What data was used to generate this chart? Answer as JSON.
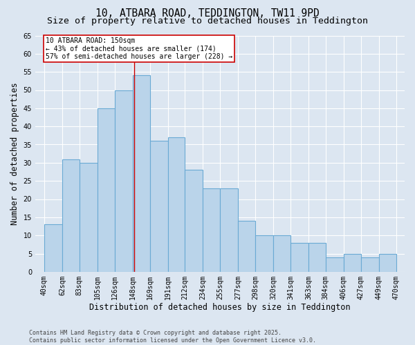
{
  "title1": "10, ATBARA ROAD, TEDDINGTON, TW11 9PD",
  "title2": "Size of property relative to detached houses in Teddington",
  "xlabel": "Distribution of detached houses by size in Teddington",
  "ylabel": "Number of detached properties",
  "bin_edges_labels": [
    "40sqm",
    "62sqm",
    "83sqm",
    "105sqm",
    "126sqm",
    "148sqm",
    "169sqm",
    "191sqm",
    "212sqm",
    "234sqm",
    "255sqm",
    "277sqm",
    "298sqm",
    "320sqm",
    "341sqm",
    "363sqm",
    "384sqm",
    "406sqm",
    "427sqm",
    "449sqm",
    "470sqm"
  ],
  "bin_edges_num": [
    40,
    62,
    83,
    105,
    126,
    148,
    169,
    191,
    212,
    234,
    255,
    277,
    298,
    320,
    341,
    363,
    384,
    406,
    427,
    449,
    470
  ],
  "bar_heights": [
    13,
    31,
    30,
    45,
    50,
    54,
    36,
    37,
    28,
    23,
    23,
    14,
    10,
    10,
    8,
    8,
    4,
    5,
    4,
    5
  ],
  "bar_color": "#bad4ea",
  "bar_edge_color": "#6aaad4",
  "vline_x": 150,
  "vline_color": "#cc0000",
  "annotation_text": "10 ATBARA ROAD: 150sqm\n← 43% of detached houses are smaller (174)\n57% of semi-detached houses are larger (228) →",
  "annotation_box_facecolor": "#ffffff",
  "annotation_box_edgecolor": "#cc0000",
  "ylim": [
    0,
    65
  ],
  "yticks": [
    0,
    5,
    10,
    15,
    20,
    25,
    30,
    35,
    40,
    45,
    50,
    55,
    60,
    65
  ],
  "background_color": "#dce6f1",
  "grid_color": "#ffffff",
  "footer": "Contains HM Land Registry data © Crown copyright and database right 2025.\nContains public sector information licensed under the Open Government Licence v3.0.",
  "title_fontsize": 10.5,
  "subtitle_fontsize": 9.5,
  "axis_label_fontsize": 8.5,
  "tick_fontsize": 7,
  "annotation_fontsize": 7,
  "footer_fontsize": 6
}
